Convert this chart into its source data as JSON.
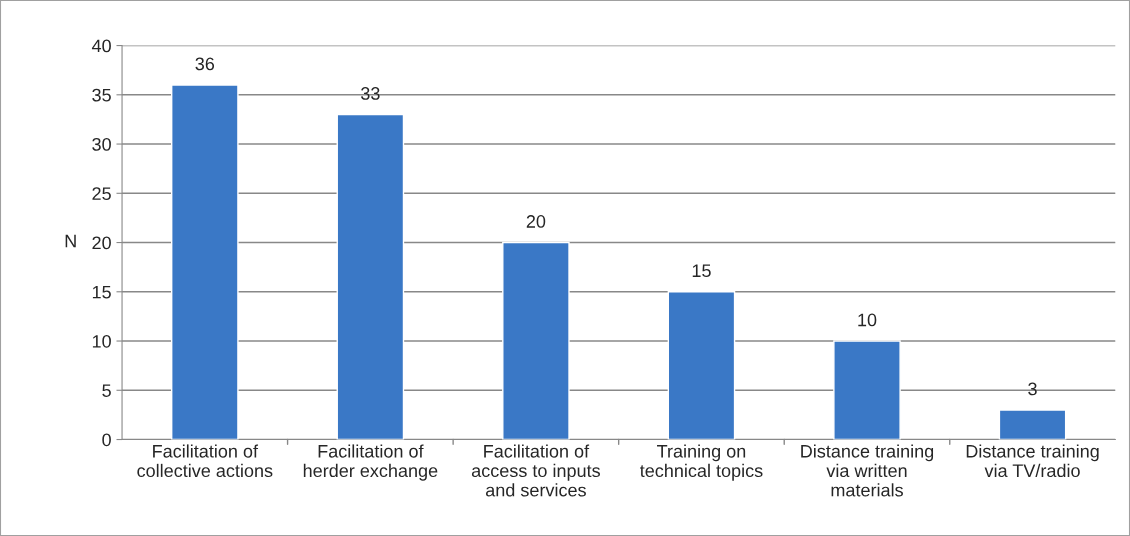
{
  "chart_data": {
    "type": "bar",
    "categories": [
      "Facilitation of\ncollective actions",
      "Facilitation of\nherder exchange",
      "Facilitation of\naccess to inputs\nand services",
      "Training on\ntechnical topics",
      "Distance training\nvia written\nmaterials",
      "Distance training\nvia TV/radio"
    ],
    "values": [
      36,
      33,
      20,
      15,
      10,
      3
    ],
    "color": "#3a78c6",
    "ylabel": "N",
    "ylim": [
      0,
      40
    ],
    "yticks": [
      0,
      5,
      10,
      15,
      20,
      25,
      30,
      35,
      40
    ],
    "grid": "y",
    "data_labels": true
  }
}
